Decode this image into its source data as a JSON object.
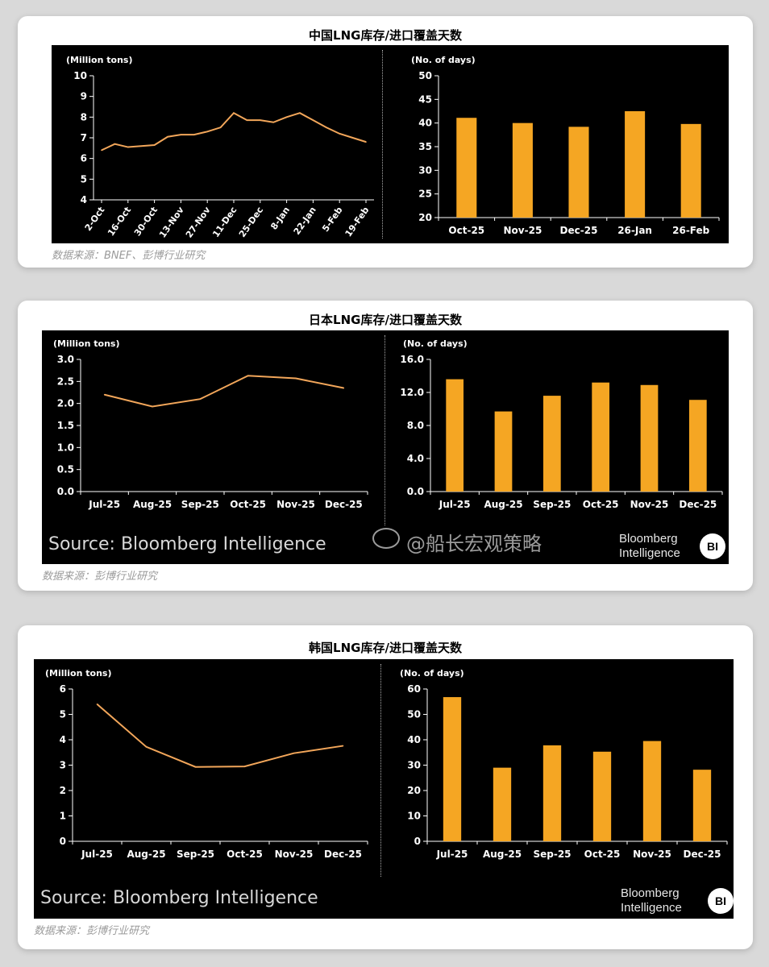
{
  "cards": [
    {
      "title": "中国LNG库存/进口覆盖天数",
      "note": "数据来源：BNEF、彭博行业研究"
    },
    {
      "title": "日本LNG库存/进口覆盖天数",
      "note": "数据来源：彭博行业研究",
      "source": "Source: Bloomberg Intelligence",
      "logo_line1": "Bloomberg",
      "logo_line2": "Intelligence",
      "logo_badge": "BI"
    },
    {
      "title": "韩国LNG库存/进口覆盖天数",
      "note": "数据来源：彭博行业研究",
      "source": "Source: Bloomberg Intelligence",
      "logo_line1": "Bloomberg",
      "logo_line2": "Intelligence",
      "logo_badge": "BI"
    }
  ],
  "watermark": "@船长宏观策略",
  "colors": {
    "line": "#f2a65a",
    "bar": "#f5a623",
    "background": "#000000",
    "axis": "#ffffff"
  },
  "chart_data": [
    {
      "type": "line",
      "ylabel": "(Million tons)",
      "categories": [
        "2-Oct",
        "16-Oct",
        "30-Oct",
        "13-Nov",
        "27-Nov",
        "11-Dec",
        "25-Dec",
        "8-Jan",
        "22-Jan",
        "5-Feb",
        "19-Feb"
      ],
      "x": [
        0,
        1,
        2,
        3,
        4,
        5,
        6,
        7,
        8,
        9,
        10,
        11,
        12,
        13,
        14,
        15,
        16,
        17,
        18,
        19,
        20
      ],
      "values": [
        6.4,
        6.7,
        6.55,
        6.6,
        6.65,
        7.05,
        7.15,
        7.15,
        7.3,
        7.5,
        8.2,
        7.85,
        7.85,
        7.75,
        8.0,
        8.2,
        7.85,
        7.5,
        7.2,
        7.0,
        6.8
      ],
      "ylim": [
        4,
        10
      ],
      "yticks": [
        4,
        5,
        6,
        7,
        8,
        9,
        10
      ],
      "xlabels_rotated": true
    },
    {
      "type": "bar",
      "ylabel": "(No. of days)",
      "categories": [
        "Oct-25",
        "Nov-25",
        "Dec-25",
        "26-Jan",
        "26-Feb"
      ],
      "values": [
        41.1,
        40.0,
        39.2,
        42.5,
        39.8
      ],
      "ylim": [
        20,
        50
      ],
      "yticks": [
        20,
        25,
        30,
        35,
        40,
        45,
        50
      ]
    },
    {
      "type": "line",
      "ylabel": "(Million tons)",
      "categories": [
        "Jul-25",
        "Aug-25",
        "Sep-25",
        "Oct-25",
        "Nov-25",
        "Dec-25"
      ],
      "values": [
        2.2,
        1.93,
        2.1,
        2.63,
        2.57,
        2.35
      ],
      "ylim": [
        0,
        3
      ],
      "yticks": [
        "0.0",
        "0.5",
        "1.0",
        "1.5",
        "2.0",
        "2.5",
        "3.0"
      ]
    },
    {
      "type": "bar",
      "ylabel": "(No. of days)",
      "categories": [
        "Jul-25",
        "Aug-25",
        "Sep-25",
        "Oct-25",
        "Nov-25",
        "Dec-25"
      ],
      "values": [
        13.6,
        9.7,
        11.6,
        13.2,
        12.9,
        11.1
      ],
      "ylim": [
        0,
        16
      ],
      "yticks": [
        "0.0",
        "4.0",
        "8.0",
        "12.0",
        "16.0"
      ]
    },
    {
      "type": "line",
      "ylabel": "(Million tons)",
      "categories": [
        "Jul-25",
        "Aug-25",
        "Sep-25",
        "Oct-25",
        "Nov-25",
        "Dec-25"
      ],
      "values": [
        5.4,
        3.72,
        2.93,
        2.95,
        3.47,
        3.76
      ],
      "ylim": [
        0,
        6
      ],
      "yticks": [
        0,
        1,
        2,
        3,
        4,
        5,
        6
      ]
    },
    {
      "type": "bar",
      "ylabel": "(No. of days)",
      "categories": [
        "Jul-25",
        "Aug-25",
        "Sep-25",
        "Oct-25",
        "Nov-25",
        "Dec-25"
      ],
      "values": [
        56.8,
        29.0,
        37.8,
        35.3,
        39.5,
        28.2
      ],
      "ylim": [
        0,
        60
      ],
      "yticks": [
        0,
        10,
        20,
        30,
        40,
        50,
        60
      ]
    }
  ]
}
